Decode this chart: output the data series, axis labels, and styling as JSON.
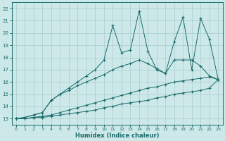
{
  "xlabel": "Humidex (Indice chaleur)",
  "bg_color": "#cce8e8",
  "grid_color": "#aacccc",
  "line_color": "#1a6b6b",
  "xlim": [
    -0.5,
    23.5
  ],
  "ylim": [
    12.5,
    22.5
  ],
  "yticks": [
    13,
    14,
    15,
    16,
    17,
    18,
    19,
    20,
    21,
    22
  ],
  "xticks": [
    0,
    1,
    2,
    3,
    4,
    5,
    6,
    7,
    8,
    9,
    10,
    11,
    12,
    13,
    14,
    15,
    16,
    17,
    18,
    19,
    20,
    21,
    22,
    23
  ],
  "series": [
    {
      "x": [
        0,
        1,
        2,
        3,
        4,
        5,
        6,
        7,
        8,
        9,
        10,
        11,
        12,
        13,
        14,
        15,
        16,
        17,
        18,
        19,
        20,
        21,
        22,
        23
      ],
      "y": [
        13.0,
        13.0,
        13.1,
        13.1,
        13.2,
        13.3,
        13.4,
        13.5,
        13.6,
        13.7,
        13.9,
        14.0,
        14.2,
        14.3,
        14.4,
        14.5,
        14.7,
        14.8,
        15.0,
        15.1,
        15.2,
        15.3,
        15.5,
        16.2
      ]
    },
    {
      "x": [
        0,
        1,
        2,
        3,
        4,
        5,
        6,
        7,
        8,
        9,
        10,
        11,
        12,
        13,
        14,
        15,
        16,
        17,
        18,
        19,
        20,
        21,
        22,
        23
      ],
      "y": [
        13.0,
        13.0,
        13.1,
        13.2,
        13.3,
        13.5,
        13.7,
        13.9,
        14.1,
        14.3,
        14.5,
        14.7,
        14.9,
        15.1,
        15.3,
        15.5,
        15.6,
        15.8,
        16.0,
        16.1,
        16.2,
        16.3,
        16.4,
        16.2
      ]
    },
    {
      "x": [
        0,
        1,
        2,
        3,
        4,
        5,
        6,
        7,
        8,
        9,
        10,
        11,
        12,
        13,
        14,
        15,
        16,
        17,
        18,
        19,
        20,
        21,
        22,
        23
      ],
      "y": [
        13.0,
        13.1,
        13.3,
        13.5,
        14.5,
        15.0,
        15.3,
        15.7,
        16.0,
        16.3,
        16.6,
        17.0,
        17.3,
        17.5,
        17.8,
        17.5,
        17.1,
        16.7,
        17.8,
        17.8,
        17.8,
        17.3,
        16.5,
        16.2
      ]
    },
    {
      "x": [
        0,
        1,
        2,
        3,
        4,
        5,
        6,
        7,
        8,
        9,
        10,
        11,
        12,
        13,
        14,
        15,
        16,
        17,
        18,
        19,
        20,
        21,
        22,
        23
      ],
      "y": [
        13.0,
        13.1,
        13.3,
        13.5,
        14.5,
        15.0,
        15.5,
        16.0,
        16.5,
        17.0,
        17.8,
        20.6,
        18.4,
        18.6,
        21.8,
        18.5,
        17.0,
        16.7,
        19.3,
        21.3,
        17.0,
        21.2,
        19.5,
        16.2
      ]
    }
  ]
}
